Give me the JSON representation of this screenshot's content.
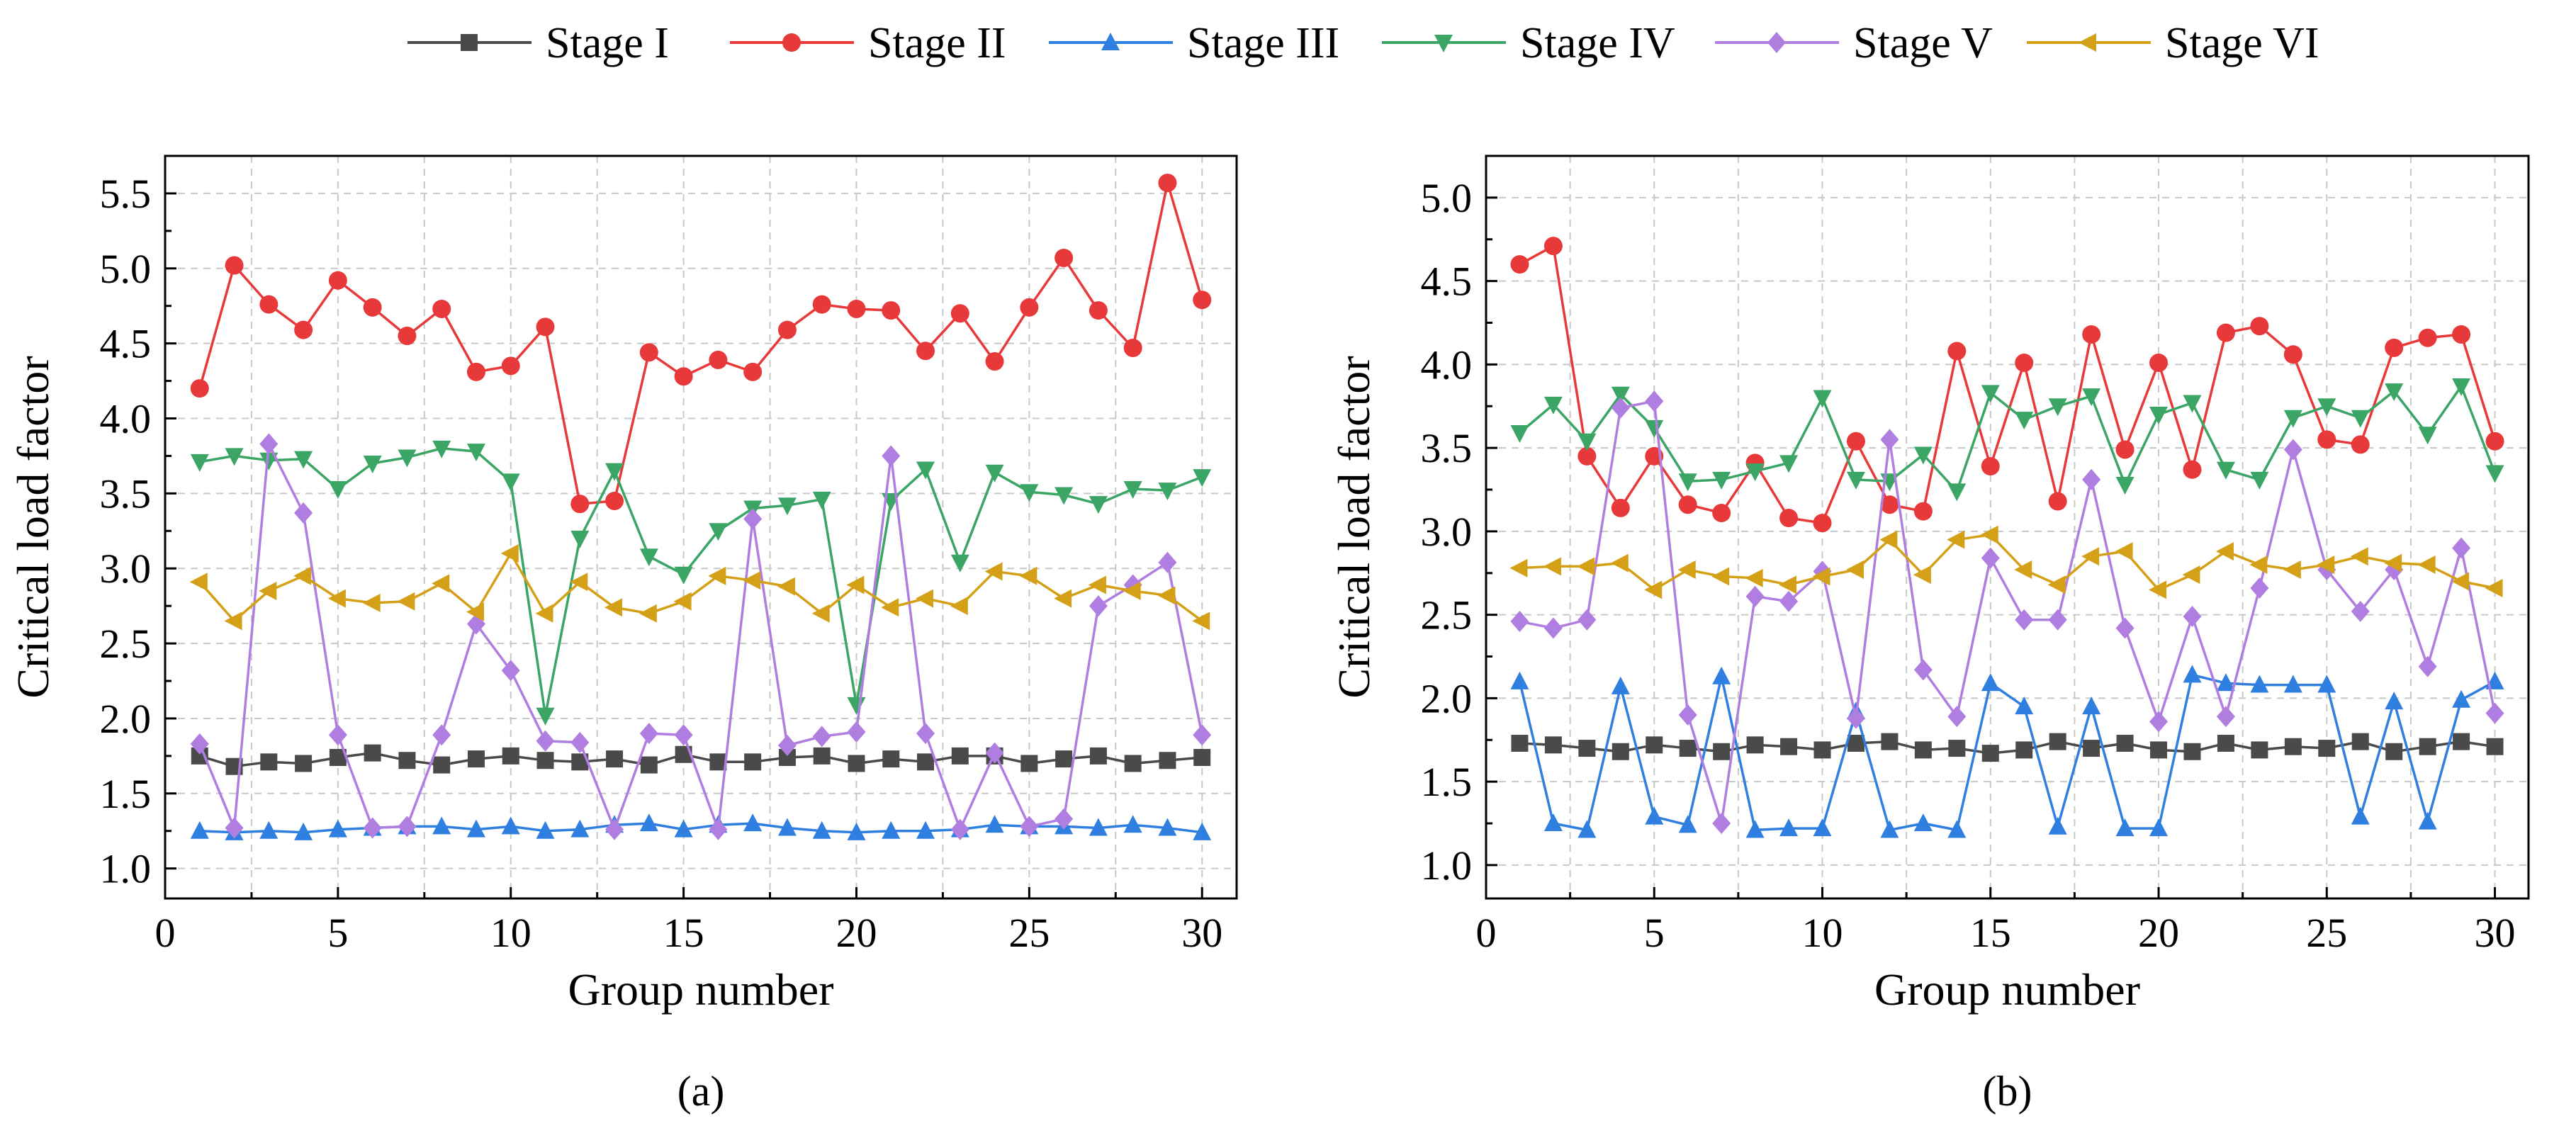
{
  "figure": {
    "legend": [
      {
        "name": "Stage I",
        "color": "#4a4a4a",
        "marker": "square"
      },
      {
        "name": "Stage II",
        "color": "#e8393a",
        "marker": "circle"
      },
      {
        "name": "Stage III",
        "color": "#2f7fe0",
        "marker": "triangle-up"
      },
      {
        "name": "Stage IV",
        "color": "#3aa565",
        "marker": "triangle-down"
      },
      {
        "name": "Stage V",
        "color": "#b07ee0",
        "marker": "diamond"
      },
      {
        "name": "Stage VI",
        "color": "#d4a017",
        "marker": "triangle-left"
      }
    ]
  },
  "chart_data": [
    {
      "type": "line",
      "panel_label": "(a)",
      "xlabel": "Group number",
      "ylabel": "Critical load factor",
      "xlim": [
        0,
        31
      ],
      "ylim": [
        0.8,
        5.75
      ],
      "xticks": [
        0,
        5,
        10,
        15,
        20,
        25,
        30
      ],
      "yticks": [
        1.0,
        1.5,
        2.0,
        2.5,
        3.0,
        3.5,
        4.0,
        4.5,
        5.0,
        5.5
      ],
      "grid": true,
      "x": [
        1,
        2,
        3,
        4,
        5,
        6,
        7,
        8,
        9,
        10,
        11,
        12,
        13,
        14,
        15,
        16,
        17,
        18,
        19,
        20,
        21,
        22,
        23,
        24,
        25,
        26,
        27,
        28,
        29,
        30
      ],
      "series": [
        {
          "name": "Stage I",
          "values": [
            1.75,
            1.68,
            1.71,
            1.7,
            1.74,
            1.77,
            1.72,
            1.69,
            1.73,
            1.75,
            1.72,
            1.71,
            1.73,
            1.69,
            1.76,
            1.71,
            1.71,
            1.74,
            1.75,
            1.7,
            1.73,
            1.71,
            1.75,
            1.75,
            1.7,
            1.73,
            1.75,
            1.7,
            1.72,
            1.74
          ]
        },
        {
          "name": "Stage II",
          "values": [
            4.2,
            5.02,
            4.76,
            4.59,
            4.92,
            4.74,
            4.55,
            4.73,
            4.31,
            4.35,
            4.61,
            3.43,
            3.45,
            4.44,
            4.28,
            4.39,
            4.31,
            4.59,
            4.76,
            4.73,
            4.72,
            4.45,
            4.7,
            4.38,
            4.74,
            5.07,
            4.72,
            4.47,
            5.57,
            4.79
          ]
        },
        {
          "name": "Stage III",
          "values": [
            1.25,
            1.24,
            1.25,
            1.24,
            1.26,
            1.27,
            1.28,
            1.28,
            1.26,
            1.28,
            1.25,
            1.26,
            1.29,
            1.3,
            1.26,
            1.29,
            1.3,
            1.27,
            1.25,
            1.24,
            1.25,
            1.25,
            1.26,
            1.29,
            1.28,
            1.28,
            1.27,
            1.29,
            1.27,
            1.24
          ]
        },
        {
          "name": "Stage IV",
          "values": [
            3.71,
            3.75,
            3.72,
            3.73,
            3.53,
            3.7,
            3.74,
            3.8,
            3.78,
            3.58,
            2.02,
            3.2,
            3.65,
            3.08,
            2.96,
            3.25,
            3.4,
            3.42,
            3.46,
            2.09,
            3.45,
            3.66,
            3.04,
            3.64,
            3.51,
            3.49,
            3.43,
            3.53,
            3.52,
            3.61
          ]
        },
        {
          "name": "Stage V",
          "values": [
            1.83,
            1.27,
            3.83,
            3.37,
            1.89,
            1.27,
            1.28,
            1.89,
            2.63,
            2.32,
            1.85,
            1.84,
            1.26,
            1.9,
            1.89,
            1.26,
            3.33,
            1.82,
            1.88,
            1.91,
            3.75,
            1.9,
            1.26,
            1.77,
            1.28,
            1.33,
            2.75,
            2.89,
            3.04,
            1.89
          ]
        },
        {
          "name": "Stage VI",
          "values": [
            2.91,
            2.65,
            2.85,
            2.95,
            2.8,
            2.77,
            2.78,
            2.9,
            2.71,
            3.1,
            2.7,
            2.91,
            2.74,
            2.7,
            2.78,
            2.95,
            2.92,
            2.88,
            2.7,
            2.89,
            2.74,
            2.8,
            2.75,
            2.98,
            2.95,
            2.8,
            2.89,
            2.85,
            2.82,
            2.65
          ]
        }
      ]
    },
    {
      "type": "line",
      "panel_label": "(b)",
      "xlabel": "Group number",
      "ylabel": "Critical load factor",
      "xlim": [
        0,
        31
      ],
      "ylim": [
        0.8,
        5.25
      ],
      "xticks": [
        0,
        5,
        10,
        15,
        20,
        25,
        30
      ],
      "yticks": [
        1.0,
        1.5,
        2.0,
        2.5,
        3.0,
        3.5,
        4.0,
        4.5,
        5.0
      ],
      "grid": true,
      "x": [
        1,
        2,
        3,
        4,
        5,
        6,
        7,
        8,
        9,
        10,
        11,
        12,
        13,
        14,
        15,
        16,
        17,
        18,
        19,
        20,
        21,
        22,
        23,
        24,
        25,
        26,
        27,
        28,
        29,
        30
      ],
      "series": [
        {
          "name": "Stage I",
          "values": [
            1.73,
            1.72,
            1.7,
            1.68,
            1.72,
            1.7,
            1.68,
            1.72,
            1.71,
            1.69,
            1.73,
            1.74,
            1.69,
            1.7,
            1.67,
            1.69,
            1.74,
            1.7,
            1.73,
            1.69,
            1.68,
            1.73,
            1.69,
            1.71,
            1.7,
            1.74,
            1.68,
            1.71,
            1.74,
            1.71
          ]
        },
        {
          "name": "Stage II",
          "values": [
            4.6,
            4.71,
            3.45,
            3.14,
            3.45,
            3.16,
            3.11,
            3.41,
            3.08,
            3.05,
            3.54,
            3.16,
            3.12,
            4.08,
            3.39,
            4.01,
            3.18,
            4.18,
            3.49,
            4.01,
            3.37,
            4.19,
            4.23,
            4.06,
            3.55,
            3.52,
            4.1,
            4.16,
            4.18,
            3.54
          ]
        },
        {
          "name": "Stage III",
          "values": [
            2.1,
            1.25,
            1.21,
            2.07,
            1.29,
            1.24,
            2.13,
            1.21,
            1.22,
            1.22,
            1.92,
            1.21,
            1.25,
            1.21,
            2.09,
            1.95,
            1.23,
            1.95,
            1.22,
            1.22,
            2.14,
            2.09,
            2.08,
            2.08,
            2.08,
            1.29,
            1.98,
            1.26,
            1.99,
            2.1
          ]
        },
        {
          "name": "Stage IV",
          "values": [
            3.59,
            3.76,
            3.54,
            3.82,
            3.62,
            3.3,
            3.31,
            3.36,
            3.41,
            3.8,
            3.31,
            3.3,
            3.46,
            3.24,
            3.83,
            3.67,
            3.75,
            3.81,
            3.28,
            3.7,
            3.77,
            3.37,
            3.31,
            3.68,
            3.75,
            3.68,
            3.84,
            3.58,
            3.87,
            3.35
          ]
        },
        {
          "name": "Stage V",
          "values": [
            2.46,
            2.42,
            2.47,
            3.74,
            3.78,
            1.9,
            1.25,
            2.61,
            2.58,
            2.76,
            1.88,
            3.55,
            2.17,
            1.89,
            2.84,
            2.47,
            2.47,
            3.31,
            2.42,
            1.86,
            2.49,
            1.89,
            2.66,
            3.49,
            2.77,
            2.52,
            2.77,
            2.19,
            2.9,
            1.91
          ]
        },
        {
          "name": "Stage VI",
          "values": [
            2.78,
            2.79,
            2.79,
            2.81,
            2.65,
            2.77,
            2.73,
            2.72,
            2.68,
            2.73,
            2.77,
            2.95,
            2.74,
            2.95,
            2.98,
            2.77,
            2.68,
            2.85,
            2.88,
            2.65,
            2.74,
            2.88,
            2.8,
            2.77,
            2.8,
            2.85,
            2.81,
            2.8,
            2.7,
            2.66
          ]
        }
      ]
    }
  ]
}
